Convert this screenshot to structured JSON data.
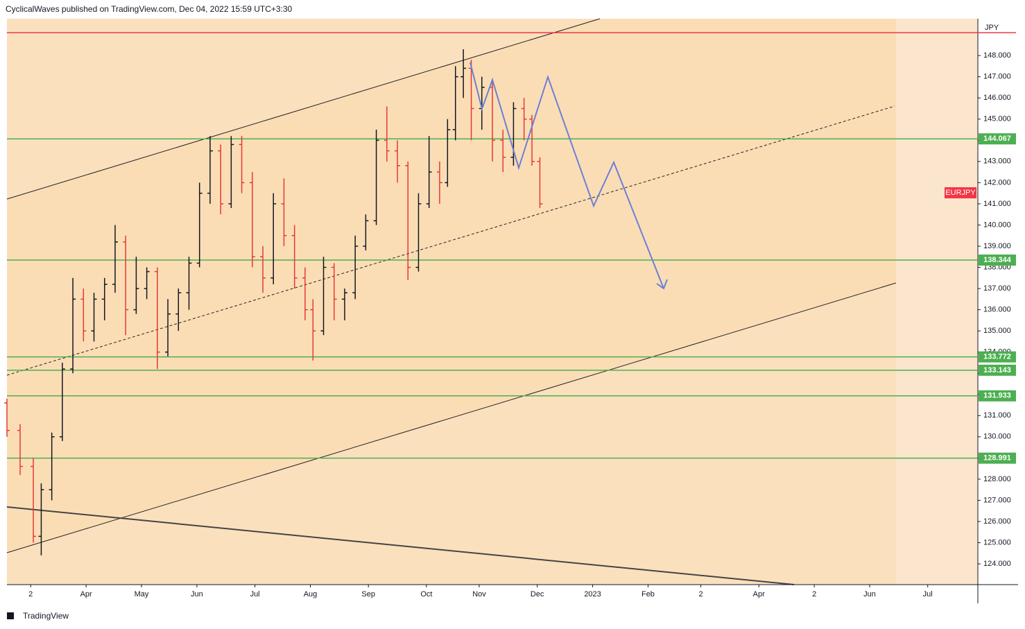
{
  "header": "CyclicalWaves published on TradingView.com, Dec 04, 2022 15:59 UTC+3:30",
  "footer": "TradingView",
  "chart_data": {
    "type": "ohlc",
    "symbol": "EURJPY",
    "y_axis_label": "JPY",
    "ylim": [
      123.02,
      149.74
    ],
    "yticks": [
      {
        "value": 124,
        "label": "124.000"
      },
      {
        "value": 125,
        "label": "125.000"
      },
      {
        "value": 126,
        "label": "126.000"
      },
      {
        "value": 127,
        "label": "127.000"
      },
      {
        "value": 128,
        "label": "128.000"
      },
      {
        "value": 129,
        "label": "129.000"
      },
      {
        "value": 130,
        "label": "130.000"
      },
      {
        "value": 131,
        "label": "131.000"
      },
      {
        "value": 132,
        "label": "132.000"
      },
      {
        "value": 133,
        "label": "133.000"
      },
      {
        "value": 134,
        "label": "134.000"
      },
      {
        "value": 135,
        "label": "135.000"
      },
      {
        "value": 136,
        "label": "136.000"
      },
      {
        "value": 137,
        "label": "137.000"
      },
      {
        "value": 138,
        "label": "138.000"
      },
      {
        "value": 139,
        "label": "139.000"
      },
      {
        "value": 140,
        "label": "140.000"
      },
      {
        "value": 141,
        "label": "141.000"
      },
      {
        "value": 142,
        "label": "142.000"
      },
      {
        "value": 143,
        "label": "143.000"
      },
      {
        "value": 144,
        "label": "144.000"
      },
      {
        "value": 145,
        "label": "145.000"
      },
      {
        "value": 146,
        "label": "146.000"
      },
      {
        "value": 147,
        "label": "147.000"
      },
      {
        "value": 148,
        "label": "148.000"
      }
    ],
    "xlim": [
      0,
      368
    ],
    "xticks": [
      {
        "value": 9,
        "label": "2"
      },
      {
        "value": 30,
        "label": "Apr"
      },
      {
        "value": 51,
        "label": "May"
      },
      {
        "value": 72,
        "label": "Jun"
      },
      {
        "value": 94,
        "label": "Jul"
      },
      {
        "value": 115,
        "label": "Aug"
      },
      {
        "value": 137,
        "label": "Sep"
      },
      {
        "value": 159,
        "label": "Oct"
      },
      {
        "value": 179,
        "label": "Nov"
      },
      {
        "value": 201,
        "label": "Dec"
      },
      {
        "value": 222,
        "label": "2023"
      },
      {
        "value": 243,
        "label": "Feb"
      },
      {
        "value": 263,
        "label": "2"
      },
      {
        "value": 285,
        "label": "Apr"
      },
      {
        "value": 306,
        "label": "2"
      },
      {
        "value": 327,
        "label": "Jun"
      },
      {
        "value": 349,
        "label": "Jul"
      }
    ],
    "x": [
      0,
      5,
      10,
      13,
      17,
      21,
      25,
      29,
      33,
      37,
      41,
      45,
      49,
      53,
      57,
      61,
      65,
      69,
      73,
      77,
      81,
      85,
      89,
      93,
      97,
      101,
      105,
      109,
      113,
      116,
      120,
      124,
      128,
      132,
      136,
      140,
      144,
      148,
      152,
      156,
      160,
      164,
      167,
      170,
      173,
      176,
      180,
      184,
      188,
      192,
      196,
      199,
      202
    ],
    "open": [
      131.6,
      130.3,
      128.6,
      125.3,
      127.5,
      130.0,
      133.2,
      136.5,
      135.0,
      136.5,
      137.2,
      139.2,
      136.0,
      137.0,
      137.8,
      134.0,
      135.8,
      136.8,
      138.2,
      141.5,
      143.5,
      141.0,
      143.8,
      142.0,
      138.5,
      137.5,
      141.0,
      139.5,
      137.5,
      136.0,
      135.0,
      138.0,
      136.5,
      136.8,
      139.0,
      140.2,
      144.0,
      143.5,
      142.8,
      138.0,
      141.0,
      142.5,
      142.0,
      144.5,
      147.0,
      147.4,
      145.5,
      146.5,
      144.0,
      143.2,
      145.5,
      145.0,
      143.0
    ],
    "high": [
      131.8,
      130.6,
      129.0,
      127.8,
      130.2,
      133.5,
      137.5,
      137.0,
      136.8,
      137.5,
      140.0,
      139.5,
      138.5,
      138.0,
      138.0,
      136.5,
      137.0,
      138.5,
      142.0,
      144.2,
      143.8,
      144.2,
      144.2,
      142.5,
      139.0,
      141.5,
      142.2,
      140.0,
      138.0,
      136.5,
      138.5,
      138.2,
      137.0,
      139.5,
      140.5,
      144.5,
      145.6,
      144.0,
      143.0,
      141.5,
      144.2,
      143.0,
      145.0,
      147.5,
      148.3,
      147.8,
      147.0,
      146.8,
      144.5,
      145.8,
      146.0,
      145.2,
      143.2
    ],
    "low": [
      130.0,
      128.2,
      125.0,
      124.4,
      127.0,
      129.8,
      133.0,
      134.5,
      134.5,
      135.5,
      136.8,
      134.8,
      135.8,
      136.5,
      133.2,
      133.8,
      135.0,
      136.0,
      138.0,
      141.0,
      140.5,
      140.8,
      141.5,
      138.0,
      136.8,
      137.2,
      139.0,
      137.0,
      135.5,
      133.6,
      134.8,
      135.5,
      135.5,
      136.5,
      138.8,
      140.0,
      143.0,
      142.0,
      137.4,
      137.8,
      140.8,
      141.0,
      141.8,
      144.0,
      146.0,
      144.0,
      144.5,
      143.0,
      142.5,
      142.8,
      144.0,
      142.8,
      140.8
    ],
    "close": [
      130.3,
      128.6,
      125.3,
      127.5,
      130.0,
      133.2,
      136.5,
      135.0,
      136.5,
      137.2,
      139.2,
      136.0,
      137.0,
      137.8,
      134.0,
      135.8,
      136.8,
      138.2,
      141.5,
      143.5,
      141.0,
      143.8,
      142.0,
      138.5,
      137.5,
      141.0,
      139.5,
      137.5,
      136.0,
      135.0,
      138.0,
      136.5,
      136.8,
      139.0,
      140.2,
      144.0,
      143.5,
      142.8,
      138.0,
      141.0,
      142.5,
      142.0,
      144.5,
      147.0,
      147.4,
      145.5,
      146.5,
      144.0,
      143.2,
      145.5,
      145.0,
      143.0,
      141.0
    ],
    "up_color": "#131722",
    "down_color": "#e53935",
    "levels": [
      144.067,
      138.344,
      133.772,
      133.143,
      131.933,
      128.991
    ],
    "level_color": "#4caf50",
    "resistance": 149.08,
    "resistance_color": "#f23645"
  }
}
